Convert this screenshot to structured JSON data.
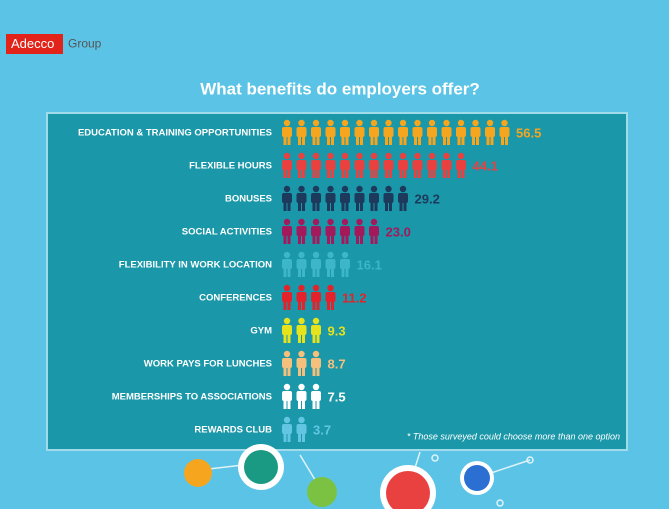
{
  "logo": {
    "brand": "Adecco",
    "group": "Group"
  },
  "chart_data": {
    "type": "pictograph",
    "title": "What benefits do employers offer?",
    "categories": [
      "EDUCATION & TRAINING OPPORTUNITIES",
      "FLEXIBLE HOURS",
      "BONUSES",
      "SOCIAL ACTIVITIES",
      "FLEXIBILITY IN WORK LOCATION",
      "CONFERENCES",
      "GYM",
      "WORK PAYS FOR LUNCHES",
      "MEMBERSHIPS TO ASSOCIATIONS",
      "REWARDS CLUB"
    ],
    "values": [
      56.5,
      44.1,
      29.2,
      23.0,
      16.1,
      11.2,
      9.3,
      8.7,
      7.5,
      3.7
    ],
    "value_labels": [
      "56.5",
      "44.1",
      "29.2",
      "23.0",
      "16.1",
      "11.2",
      "9.3",
      "8.7",
      "7.5",
      "3.7"
    ],
    "colors": [
      "#f6a51f",
      "#e8413f",
      "#1d3a5c",
      "#a3195b",
      "#3cb6c8",
      "#e3232b",
      "#e6e21b",
      "#f4c07c",
      "#ffffff",
      "#62c6e3"
    ],
    "note": "* Those surveyed could choose more than one option"
  }
}
